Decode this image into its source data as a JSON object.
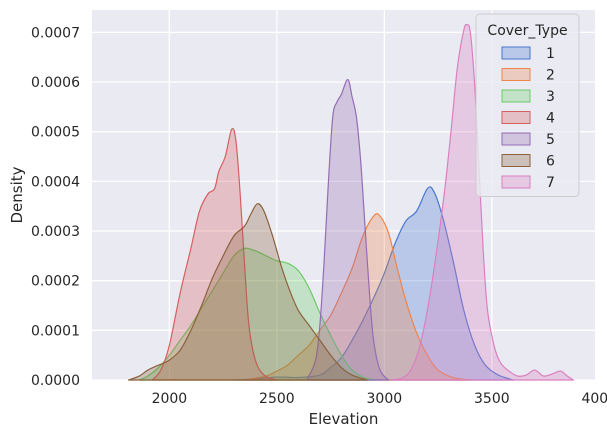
{
  "chart_data": {
    "type": "area",
    "xlabel": "Elevation",
    "ylabel": "Density",
    "xlim": [
      1640,
      3980
    ],
    "ylim": [
      0,
      0.000745
    ],
    "xticks": [
      2000,
      2500,
      3000,
      3500,
      4000
    ],
    "yticks": [
      0,
      0.0001,
      0.0002,
      0.0003,
      0.0004,
      0.0005,
      0.0006,
      0.0007
    ],
    "ytick_labels": [
      "0.0000",
      "0.0001",
      "0.0002",
      "0.0003",
      "0.0004",
      "0.0005",
      "0.0006",
      "0.0007"
    ],
    "grid": true,
    "background": "#eaeaf2",
    "legend": {
      "title": "Cover_Type",
      "position": "top-right"
    },
    "series": [
      {
        "name": "1",
        "color": "#4878d0",
        "fill_opacity": 0.3,
        "points": [
          [
            2300,
            0
          ],
          [
            2400,
            2e-06
          ],
          [
            2500,
            6e-06
          ],
          [
            2600,
            5e-06
          ],
          [
            2700,
            1e-05
          ],
          [
            2750,
            2.5e-05
          ],
          [
            2800,
            4.5e-05
          ],
          [
            2850,
            8e-05
          ],
          [
            2900,
            0.00012
          ],
          [
            2950,
            0.000165
          ],
          [
            3000,
            0.000215
          ],
          [
            3050,
            0.000275
          ],
          [
            3100,
            0.00032
          ],
          [
            3150,
            0.00034
          ],
          [
            3200,
            0.000385
          ],
          [
            3230,
            0.00038
          ],
          [
            3270,
            0.00033
          ],
          [
            3320,
            0.00024
          ],
          [
            3370,
            0.00014
          ],
          [
            3420,
            7e-05
          ],
          [
            3470,
            3e-05
          ],
          [
            3530,
            1e-05
          ],
          [
            3600,
            0
          ]
        ]
      },
      {
        "name": "2",
        "color": "#ee854a",
        "fill_opacity": 0.3,
        "points": [
          [
            2350,
            0
          ],
          [
            2450,
            8e-06
          ],
          [
            2500,
            1.8e-05
          ],
          [
            2550,
            3e-05
          ],
          [
            2600,
            5e-05
          ],
          [
            2650,
            7e-05
          ],
          [
            2700,
            0.0001
          ],
          [
            2750,
            0.00013
          ],
          [
            2800,
            0.000175
          ],
          [
            2850,
            0.000225
          ],
          [
            2900,
            0.00029
          ],
          [
            2950,
            0.00033
          ],
          [
            2980,
            0.00033
          ],
          [
            3020,
            0.000295
          ],
          [
            3060,
            0.000225
          ],
          [
            3100,
            0.00016
          ],
          [
            3150,
            9.5e-05
          ],
          [
            3200,
            5e-05
          ],
          [
            3250,
            2e-05
          ],
          [
            3320,
            5e-06
          ],
          [
            3400,
            0
          ]
        ]
      },
      {
        "name": "3",
        "color": "#6acc64",
        "fill_opacity": 0.3,
        "points": [
          [
            1860,
            0
          ],
          [
            1900,
            8e-06
          ],
          [
            1950,
            2.5e-05
          ],
          [
            2000,
            5e-05
          ],
          [
            2050,
            8e-05
          ],
          [
            2100,
            0.00011
          ],
          [
            2150,
            0.000145
          ],
          [
            2200,
            0.00018
          ],
          [
            2250,
            0.000215
          ],
          [
            2300,
            0.00025
          ],
          [
            2350,
            0.000265
          ],
          [
            2400,
            0.00026
          ],
          [
            2450,
            0.00025
          ],
          [
            2500,
            0.00024
          ],
          [
            2550,
            0.000235
          ],
          [
            2600,
            0.00022
          ],
          [
            2650,
            0.000185
          ],
          [
            2700,
            0.000135
          ],
          [
            2750,
            9e-05
          ],
          [
            2800,
            5e-05
          ],
          [
            2850,
            2e-05
          ],
          [
            2900,
            6e-06
          ],
          [
            2960,
            0
          ]
        ]
      },
      {
        "name": "4",
        "color": "#d65f5f",
        "fill_opacity": 0.3,
        "points": [
          [
            1920,
            0
          ],
          [
            1960,
            2e-05
          ],
          [
            2000,
            7e-05
          ],
          [
            2050,
            0.000175
          ],
          [
            2100,
            0.000265
          ],
          [
            2140,
            0.00034
          ],
          [
            2180,
            0.000375
          ],
          [
            2210,
            0.000385
          ],
          [
            2230,
            0.00042
          ],
          [
            2260,
            0.00045
          ],
          [
            2290,
            0.000505
          ],
          [
            2310,
            0.00048
          ],
          [
            2330,
            0.00037
          ],
          [
            2350,
            0.00023
          ],
          [
            2370,
            0.00011
          ],
          [
            2400,
            4e-05
          ],
          [
            2440,
            1e-05
          ],
          [
            2500,
            0
          ]
        ]
      },
      {
        "name": "5",
        "color": "#956cb4",
        "fill_opacity": 0.3,
        "points": [
          [
            2640,
            0
          ],
          [
            2680,
            4e-05
          ],
          [
            2700,
            0.00011
          ],
          [
            2720,
            0.00024
          ],
          [
            2740,
            0.0004
          ],
          [
            2760,
            0.00053
          ],
          [
            2780,
            0.00056
          ],
          [
            2800,
            0.000575
          ],
          [
            2830,
            0.000605
          ],
          [
            2850,
            0.00057
          ],
          [
            2870,
            0.00053
          ],
          [
            2890,
            0.00044
          ],
          [
            2910,
            0.00031
          ],
          [
            2930,
            0.00018
          ],
          [
            2950,
            8e-05
          ],
          [
            2980,
            2e-05
          ],
          [
            3020,
            0
          ]
        ]
      },
      {
        "name": "6",
        "color": "#8c613c",
        "fill_opacity": 0.3,
        "points": [
          [
            1810,
            0
          ],
          [
            1860,
            8e-06
          ],
          [
            1900,
            2e-05
          ],
          [
            1950,
            3e-05
          ],
          [
            2000,
            4e-05
          ],
          [
            2050,
            6e-05
          ],
          [
            2100,
            0.0001
          ],
          [
            2150,
            0.00015
          ],
          [
            2200,
            0.000205
          ],
          [
            2250,
            0.00025
          ],
          [
            2300,
            0.00029
          ],
          [
            2350,
            0.00031
          ],
          [
            2380,
            0.000335
          ],
          [
            2410,
            0.000355
          ],
          [
            2440,
            0.00034
          ],
          [
            2480,
            0.00029
          ],
          [
            2520,
            0.00023
          ],
          [
            2560,
            0.00018
          ],
          [
            2600,
            0.00014
          ],
          [
            2650,
            0.00011
          ],
          [
            2700,
            8e-05
          ],
          [
            2750,
            5e-05
          ],
          [
            2800,
            2.5e-05
          ],
          [
            2850,
            1e-05
          ],
          [
            2920,
            0
          ]
        ]
      },
      {
        "name": "7",
        "color": "#dc7ec0",
        "fill_opacity": 0.3,
        "points": [
          [
            3030,
            0
          ],
          [
            3080,
            4e-06
          ],
          [
            3120,
            1.8e-05
          ],
          [
            3160,
            6e-05
          ],
          [
            3200,
            0.00014
          ],
          [
            3240,
            0.00025
          ],
          [
            3280,
            0.00038
          ],
          [
            3310,
            0.0005
          ],
          [
            3340,
            0.00063
          ],
          [
            3370,
            0.000705
          ],
          [
            3385,
            0.000715
          ],
          [
            3400,
            0.0007
          ],
          [
            3420,
            0.000595
          ],
          [
            3440,
            0.00043
          ],
          [
            3460,
            0.00026
          ],
          [
            3480,
            0.00014
          ],
          [
            3510,
            7e-05
          ],
          [
            3540,
            3.5e-05
          ],
          [
            3580,
            1.8e-05
          ],
          [
            3620,
            8e-06
          ],
          [
            3660,
            1e-05
          ],
          [
            3700,
            2e-05
          ],
          [
            3740,
            8e-06
          ],
          [
            3780,
            1.2e-05
          ],
          [
            3820,
            1.8e-05
          ],
          [
            3850,
            8e-06
          ],
          [
            3880,
            0
          ]
        ]
      }
    ]
  }
}
